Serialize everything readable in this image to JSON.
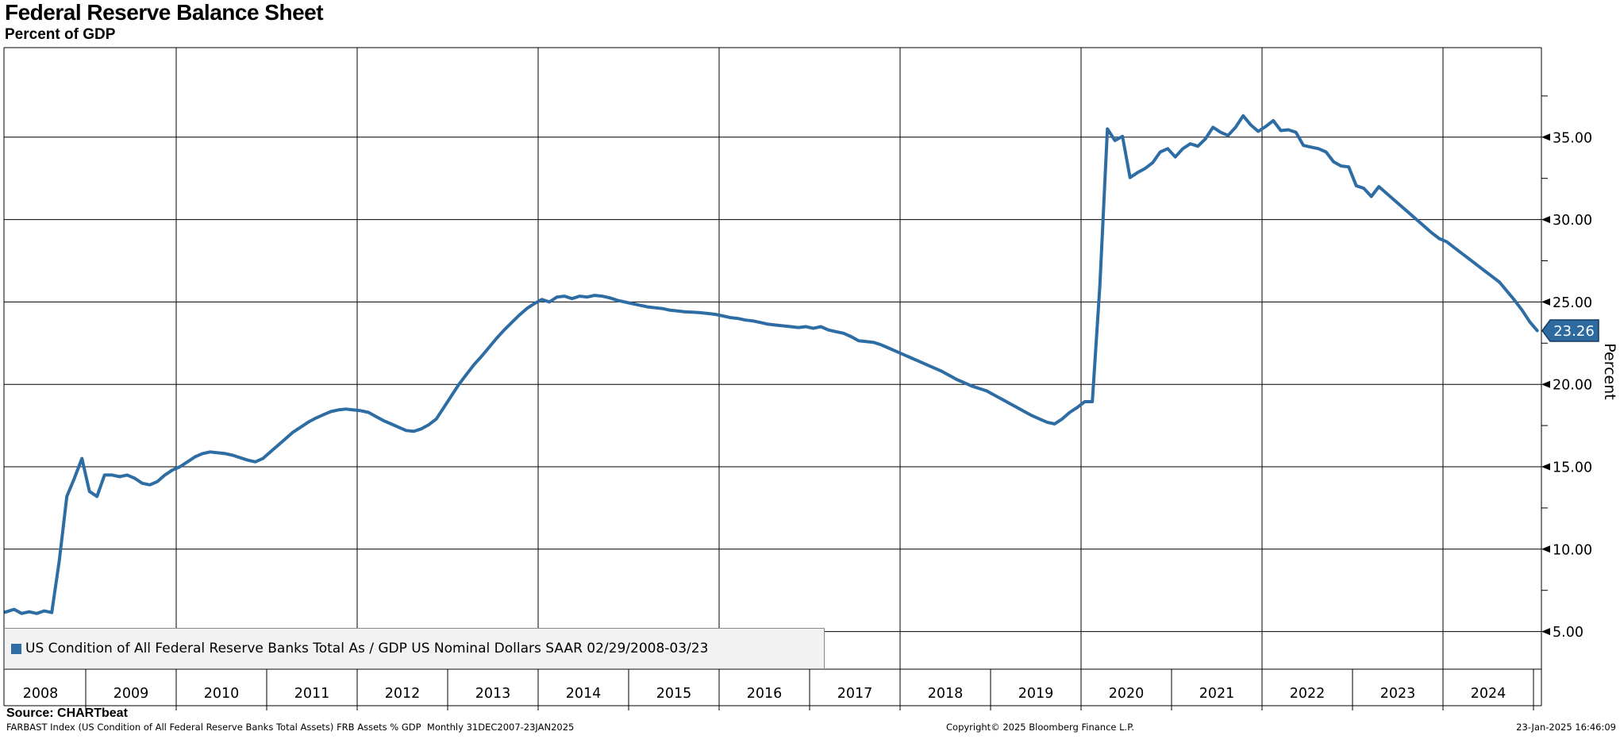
{
  "header": {
    "title": "Federal Reserve Balance Sheet",
    "subtitle": "Percent of GDP"
  },
  "legend": {
    "marker_color": "#2e6da4",
    "label": "US Condition of All Federal Reserve Banks Total As / GDP US Nominal Dollars SAAR 02/29/2008-03/23"
  },
  "footer": {
    "source": "Source: CHARTbeat",
    "description": "FARBAST Index (US Condition of All Federal Reserve Banks Total Assets) FRB Assets % GDP  Monthly 31DEC2007-23JAN2025",
    "copyright": "Copyright© 2025 Bloomberg Finance L.P.",
    "timestamp": "23-Jan-2025 16:46:09"
  },
  "chart_data": {
    "type": "line",
    "title": "Federal Reserve Balance Sheet",
    "subtitle": "Percent of GDP",
    "xlabel": "",
    "ylabel": "Percent",
    "grid": true,
    "line_color": "#2e6da4",
    "grid_color": "#000000",
    "y_axis": {
      "ticks": [
        5,
        10,
        15,
        20,
        25,
        30,
        35
      ],
      "minor_ticks": [
        7.5,
        12.5,
        17.5,
        22.5,
        27.5,
        32.5,
        37.5
      ],
      "tick_decimals": 2,
      "top_value": 40.4,
      "bottom_value": 2.7
    },
    "x_axis": {
      "year_labels": [
        "2008",
        "2009",
        "2010",
        "2011",
        "2012",
        "2013",
        "2014",
        "2015",
        "2016",
        "2017",
        "2018",
        "2019",
        "2020",
        "2021",
        "2022",
        "2023",
        "2024"
      ],
      "gridline_years": [
        2010,
        2012,
        2014,
        2016,
        2018,
        2020,
        2022,
        2024
      ],
      "domain_start": 2008.04,
      "domain_end": 2025.09
    },
    "last_value": {
      "label": "23.26",
      "value": 23.26,
      "badge_fill": "#2c6aa0",
      "badge_border": "#16395f"
    },
    "series": [
      {
        "name": "US Condition of All Federal Reserve Banks Total As / GDP US Nominal Dollars SAAR",
        "color": "#2e6da4",
        "start": 2007.958,
        "step": 0.0833333,
        "values": [
          6.1,
          6.1,
          6.2,
          6.35,
          6.1,
          6.2,
          6.1,
          6.25,
          6.15,
          9.3,
          13.2,
          14.3,
          15.5,
          13.5,
          13.2,
          14.5,
          14.5,
          14.4,
          14.5,
          14.3,
          14.0,
          13.9,
          14.1,
          14.5,
          14.8,
          15.0,
          15.3,
          15.6,
          15.8,
          15.9,
          15.85,
          15.8,
          15.7,
          15.55,
          15.4,
          15.3,
          15.5,
          15.9,
          16.3,
          16.7,
          17.1,
          17.4,
          17.7,
          17.95,
          18.15,
          18.35,
          18.45,
          18.5,
          18.45,
          18.4,
          18.3,
          18.05,
          17.8,
          17.6,
          17.4,
          17.2,
          17.15,
          17.3,
          17.55,
          17.9,
          18.6,
          19.3,
          20.0,
          20.6,
          21.2,
          21.7,
          22.25,
          22.8,
          23.3,
          23.75,
          24.2,
          24.6,
          24.9,
          25.15,
          25.0,
          25.3,
          25.35,
          25.2,
          25.35,
          25.3,
          25.4,
          25.35,
          25.25,
          25.1,
          25.0,
          24.9,
          24.8,
          24.7,
          24.65,
          24.6,
          24.5,
          24.45,
          24.4,
          24.38,
          24.35,
          24.3,
          24.25,
          24.15,
          24.05,
          24.0,
          23.9,
          23.85,
          23.75,
          23.65,
          23.6,
          23.55,
          23.5,
          23.45,
          23.5,
          23.4,
          23.5,
          23.3,
          23.2,
          23.1,
          22.9,
          22.65,
          22.6,
          22.55,
          22.4,
          22.2,
          22.0,
          21.8,
          21.6,
          21.4,
          21.2,
          21.0,
          20.8,
          20.55,
          20.3,
          20.1,
          19.9,
          19.75,
          19.6,
          19.35,
          19.1,
          18.85,
          18.6,
          18.35,
          18.1,
          17.9,
          17.7,
          17.6,
          17.9,
          18.3,
          18.6,
          18.95,
          18.95,
          26.0,
          35.5,
          34.8,
          35.05,
          32.55,
          32.85,
          33.1,
          33.45,
          34.1,
          34.3,
          33.8,
          34.3,
          34.6,
          34.45,
          34.9,
          35.6,
          35.3,
          35.1,
          35.6,
          36.3,
          35.75,
          35.35,
          35.65,
          36.0,
          35.4,
          35.45,
          35.3,
          34.5,
          34.4,
          34.3,
          34.1,
          33.5,
          33.25,
          33.2,
          32.05,
          31.9,
          31.4,
          32.0,
          31.6,
          31.2,
          30.8,
          30.4,
          30.0,
          29.6,
          29.2,
          28.85,
          28.65,
          28.3,
          27.95,
          27.6,
          27.25,
          26.9,
          26.55,
          26.2,
          25.65,
          25.1,
          24.5,
          23.8,
          23.26
        ]
      }
    ]
  }
}
